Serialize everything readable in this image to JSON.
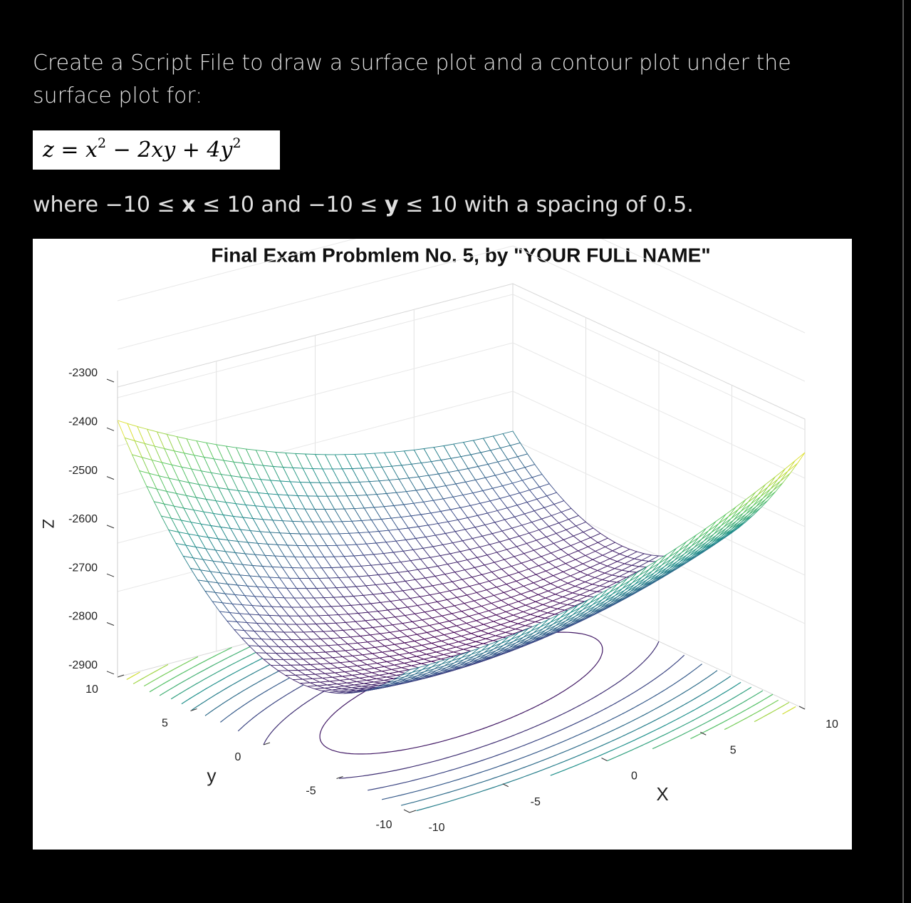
{
  "question": {
    "intro": "Create a Script File to draw a surface plot and a contour plot under the surface plot for:",
    "equation": [
      "z = x",
      "2",
      " − 2xy + 4y",
      "2"
    ],
    "range": [
      "where −10 ≤ ",
      "x",
      " ≤ 10 and −10 ≤ ",
      "y",
      " ≤ 10 with a spacing of 0.5."
    ]
  },
  "figure": {
    "title": "Final Exam Probmlem No. 5, by \"YOUR FULL NAME\"",
    "z_label": "Z",
    "z_ticks": [
      "-2300",
      "-2400",
      "-2500",
      "-2600",
      "-2700",
      "-2800",
      "-2900"
    ],
    "y_label": "y",
    "y_ticks": [
      "10",
      "5",
      "0",
      "-5",
      "-10"
    ],
    "x_label": "X",
    "x_ticks": [
      "-10",
      "-5",
      "0",
      "5",
      "10"
    ]
  }
}
